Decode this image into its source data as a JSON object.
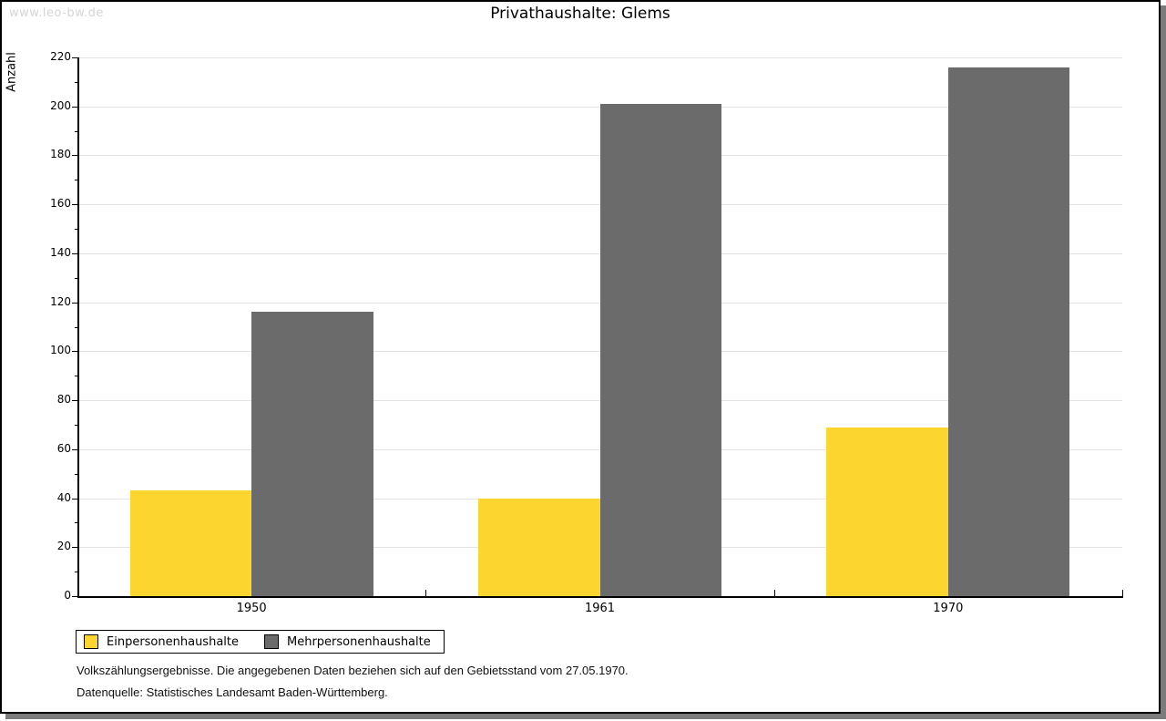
{
  "watermark": "www.leo-bw.de",
  "chart_data": {
    "type": "bar",
    "title": "Privathaushalte: Glems",
    "ylabel": "Anzahl",
    "xlabel": "",
    "categories": [
      "1950",
      "1961",
      "1970"
    ],
    "series": [
      {
        "name": "Einpersonenhaushalte",
        "color": "#fdd52f",
        "values": [
          43,
          40,
          69
        ]
      },
      {
        "name": "Mehrpersonenhaushalte",
        "color": "#6b6b6b",
        "values": [
          116,
          201,
          216
        ]
      }
    ],
    "ylim": [
      0,
      220
    ],
    "y_tick_step": 20,
    "y_minor_tick_step": 10,
    "grid": "horizontal-major",
    "legend_position": "bottom-left"
  },
  "footnotes": [
    "Volkszählungsergebnisse. Die angegebenen Daten beziehen sich auf den Gebietsstand vom 27.05.1970.",
    "Datenquelle: Statistisches Landesamt Baden-Württemberg."
  ],
  "colors": {
    "series_yellow": "#fdd52f",
    "series_gray": "#6b6b6b",
    "gridline": "#e3e3e3",
    "axis": "#000000",
    "watermark": "#d5d5d5",
    "frame_shadow": "#7b7b7b"
  }
}
